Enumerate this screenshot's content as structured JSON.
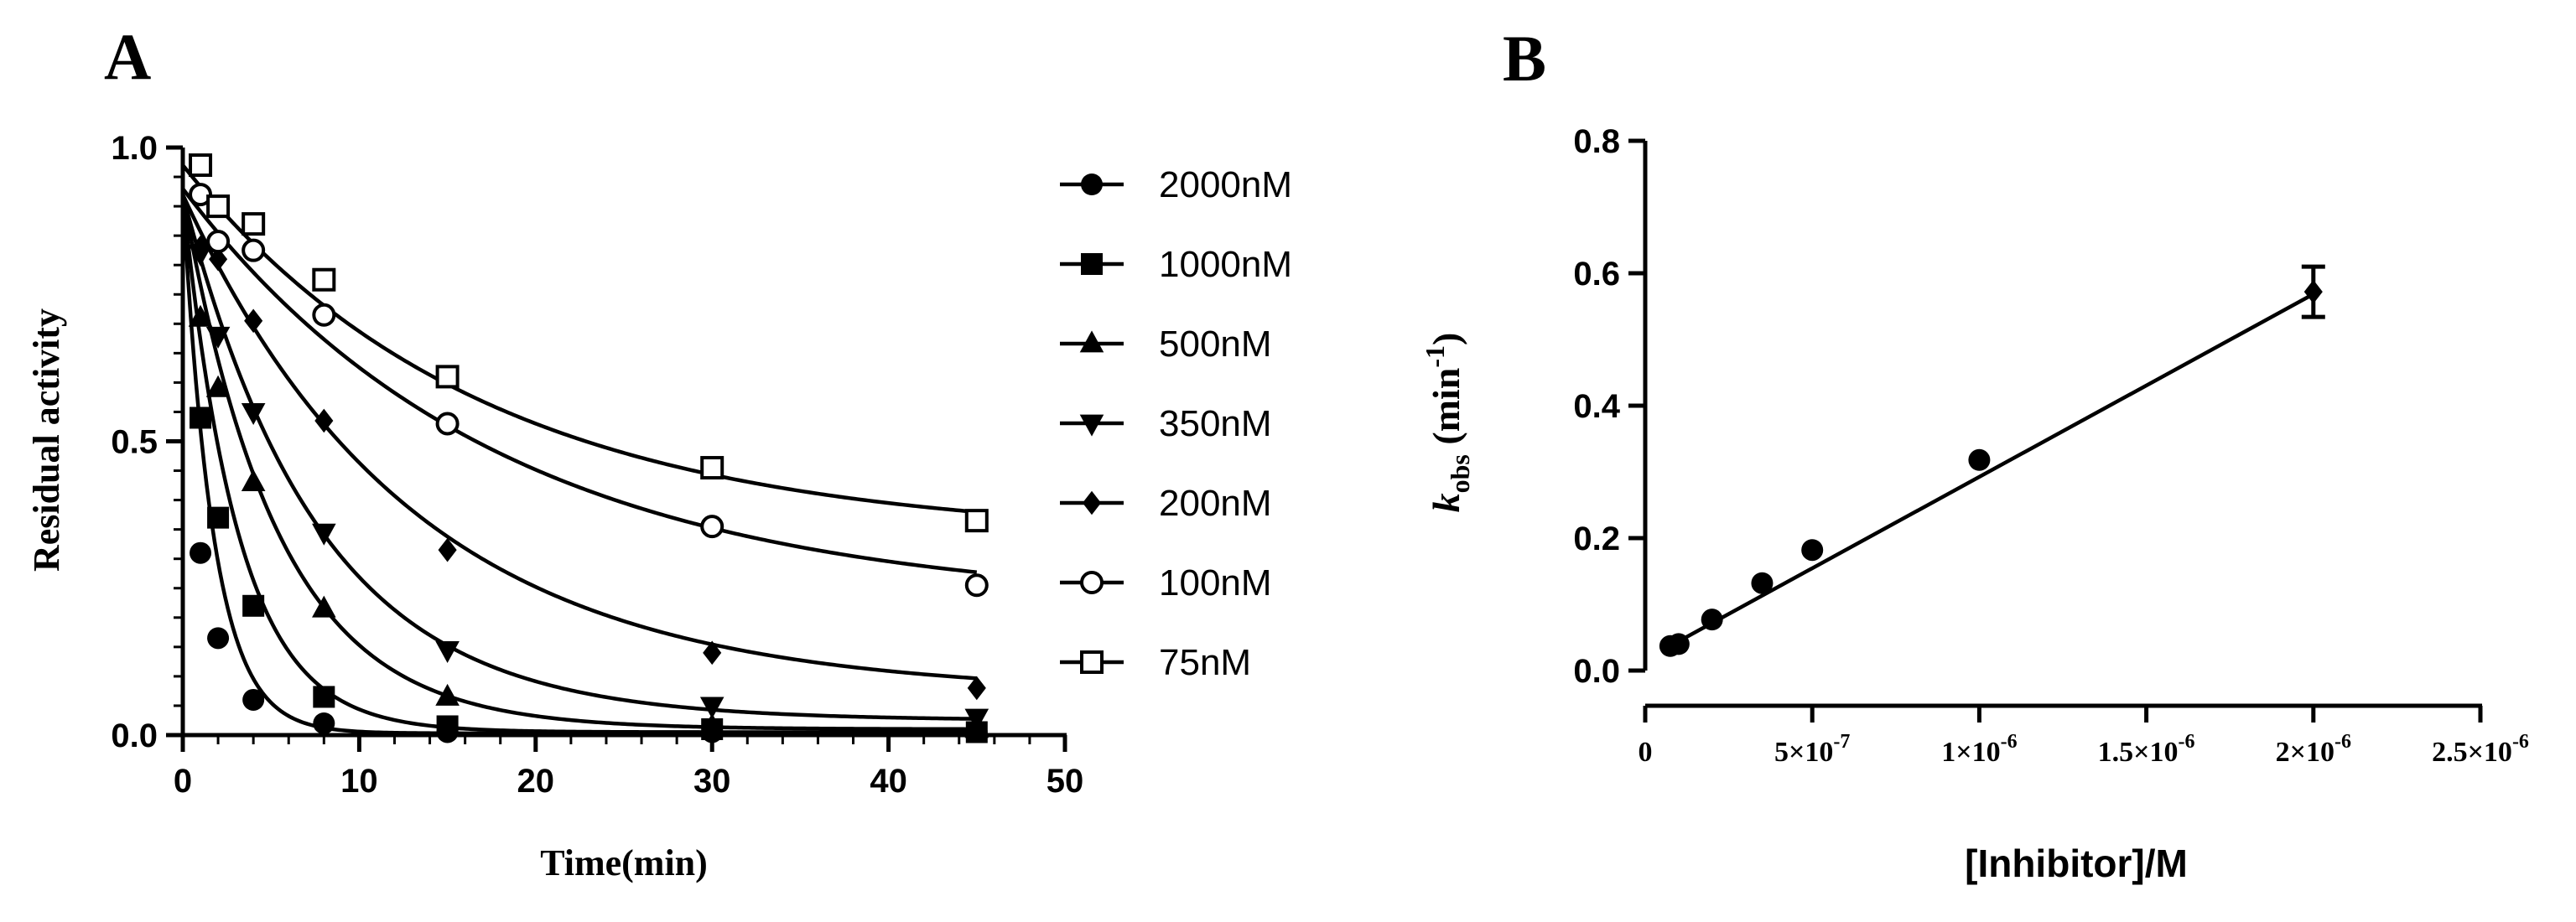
{
  "chart_data": [
    {
      "id": "A",
      "type": "scatter",
      "panel_label": "A",
      "xlabel": "Time(min)",
      "ylabel": "Residual activity",
      "xlim": [
        0,
        50
      ],
      "ylim": [
        0,
        1.0
      ],
      "xticks": [
        "0",
        "10",
        "20",
        "30",
        "40",
        "50"
      ],
      "yticks": [
        "0.0",
        "0.5",
        "1.0"
      ],
      "legend_position": "right",
      "x": [
        1,
        2,
        4,
        8,
        15,
        30,
        45
      ],
      "series": [
        {
          "name": "2000nM",
          "marker": "circle-filled",
          "values": [
            0.31,
            0.165,
            0.06,
            0.02,
            0.005,
            0.005,
            0.005
          ]
        },
        {
          "name": "1000nM",
          "marker": "square-filled",
          "values": [
            0.54,
            0.37,
            0.22,
            0.065,
            0.015,
            0.01,
            0.005
          ]
        },
        {
          "name": "500nM",
          "marker": "triangle-up",
          "values": [
            0.71,
            0.59,
            0.43,
            0.215,
            0.065,
            0.015,
            0.01
          ]
        },
        {
          "name": "350nM",
          "marker": "triangle-down",
          "values": [
            0.82,
            0.68,
            0.55,
            0.345,
            0.145,
            0.05,
            0.03
          ]
        },
        {
          "name": "200nM",
          "marker": "diamond-filled",
          "values": [
            0.83,
            0.81,
            0.705,
            0.535,
            0.315,
            0.14,
            0.08
          ]
        },
        {
          "name": "100nM",
          "marker": "circle-open",
          "values": [
            0.92,
            0.84,
            0.825,
            0.715,
            0.53,
            0.355,
            0.255
          ]
        },
        {
          "name": "75nM",
          "marker": "square-open",
          "values": [
            0.97,
            0.9,
            0.87,
            0.775,
            0.61,
            0.455,
            0.365
          ]
        }
      ],
      "fits": [
        {
          "name": "2000nM",
          "A0": 0.92,
          "k": 0.573,
          "C": 0.003
        },
        {
          "name": "1000nM",
          "A0": 0.92,
          "k": 0.316,
          "C": 0.005
        },
        {
          "name": "500nM",
          "A0": 0.92,
          "k": 0.185,
          "C": 0.01
        },
        {
          "name": "350nM",
          "A0": 0.92,
          "k": 0.13,
          "C": 0.025
        },
        {
          "name": "200nM",
          "A0": 0.92,
          "k": 0.077,
          "C": 0.07
        },
        {
          "name": "100nM",
          "A0": 0.93,
          "k": 0.056,
          "C": 0.22
        },
        {
          "name": "75nM",
          "A0": 0.97,
          "k": 0.059,
          "C": 0.335
        }
      ]
    },
    {
      "id": "B",
      "type": "scatter",
      "panel_label": "B",
      "xlabel": "[Inhibitor]/M",
      "ylabel_main": "k",
      "ylabel_sub": "obs",
      "ylabel_units": " (min",
      "ylabel_sup": "-1",
      "ylabel_close": ")",
      "xlim": [
        0,
        2.5e-06
      ],
      "ylim": [
        0,
        0.8
      ],
      "xticks": [
        "0",
        "5×10",
        "1×10",
        "1.5×10",
        "2×10",
        "2.5×10"
      ],
      "xtick_exponents": [
        "",
        "-7",
        "-6",
        "-6",
        "-6",
        "-6"
      ],
      "xtick_values": [
        0,
        5e-07,
        1e-06,
        1.5e-06,
        2e-06,
        2.5e-06
      ],
      "yticks": [
        "0.0",
        "0.2",
        "0.4",
        "0.6",
        "0.8"
      ],
      "x": [
        7.5e-08,
        1e-07,
        2e-07,
        3.5e-07,
        5e-07,
        1e-06,
        2e-06
      ],
      "values": [
        0.037,
        0.04,
        0.077,
        0.132,
        0.182,
        0.318,
        0.572
      ],
      "error": [
        0,
        0,
        0,
        0,
        0,
        0,
        0.038
      ],
      "fit": {
        "slope": 276000,
        "intercept": 0.0165,
        "x_range": [
          7.5e-08,
          2e-06
        ]
      }
    }
  ]
}
